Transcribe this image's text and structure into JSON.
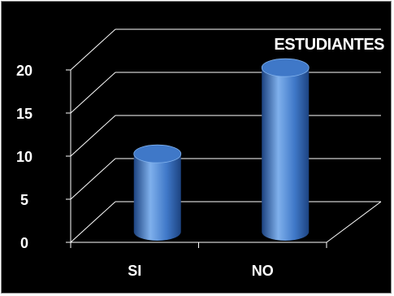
{
  "chart_data": {
    "type": "bar",
    "title": "ESTUDIANTES",
    "categories": [
      "SI",
      "NO"
    ],
    "values": [
      8,
      18
    ],
    "ylim": [
      0,
      20
    ],
    "yticks": [
      0,
      5,
      10,
      15,
      20
    ],
    "grid": true,
    "style": "3d-cylinder",
    "colors": {
      "background": "#000000",
      "bar": "#3f78c8",
      "bar_highlight": "#7fb0ec",
      "bar_shadow": "#1d4380",
      "grid": "#ffffff",
      "text": "#ffffff"
    }
  }
}
